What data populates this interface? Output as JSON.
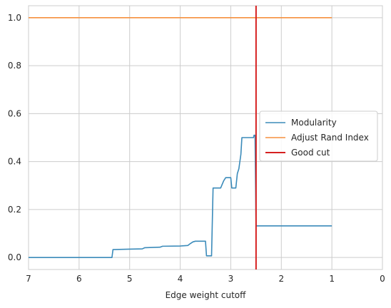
{
  "chart_data": {
    "type": "line",
    "title": "",
    "xlabel": "Edge weight cutoff",
    "ylabel": "",
    "xlim": [
      7,
      0
    ],
    "ylim": [
      -0.05,
      1.05
    ],
    "x_inverted": true,
    "grid": true,
    "xticks": [
      7,
      6,
      5,
      4,
      3,
      2,
      1,
      0
    ],
    "yticks": [
      0.0,
      0.2,
      0.4,
      0.6,
      0.8,
      1.0
    ],
    "xtick_labels": [
      "7",
      "6",
      "5",
      "4",
      "3",
      "2",
      "1",
      "0"
    ],
    "ytick_labels": [
      "0.0",
      "0.2",
      "0.4",
      "0.6",
      "0.8",
      "1.0"
    ],
    "legend_position": "center-right",
    "series": [
      {
        "name": "Modularity",
        "color": "#3b8bba",
        "style": "line",
        "points": [
          [
            7.0,
            0.0
          ],
          [
            5.35,
            0.0
          ],
          [
            5.33,
            0.033
          ],
          [
            5.0,
            0.035
          ],
          [
            4.75,
            0.036
          ],
          [
            4.7,
            0.041
          ],
          [
            4.4,
            0.043
          ],
          [
            4.35,
            0.047
          ],
          [
            4.0,
            0.048
          ],
          [
            3.85,
            0.05
          ],
          [
            3.8,
            0.058
          ],
          [
            3.75,
            0.065
          ],
          [
            3.7,
            0.068
          ],
          [
            3.5,
            0.068
          ],
          [
            3.48,
            0.007
          ],
          [
            3.38,
            0.007
          ],
          [
            3.35,
            0.29
          ],
          [
            3.2,
            0.29
          ],
          [
            3.18,
            0.3
          ],
          [
            3.14,
            0.32
          ],
          [
            3.1,
            0.333
          ],
          [
            3.0,
            0.333
          ],
          [
            2.98,
            0.29
          ],
          [
            2.9,
            0.29
          ],
          [
            2.87,
            0.35
          ],
          [
            2.84,
            0.37
          ],
          [
            2.8,
            0.43
          ],
          [
            2.78,
            0.5
          ],
          [
            2.55,
            0.5
          ],
          [
            2.54,
            0.51
          ],
          [
            2.52,
            0.51
          ],
          [
            2.5,
            0.132
          ],
          [
            1.0,
            0.132
          ]
        ]
      },
      {
        "name": "Adjust Rand Index",
        "color": "#f5913e",
        "style": "line",
        "points": [
          [
            7.0,
            1.0
          ],
          [
            1.0,
            1.0
          ]
        ]
      },
      {
        "name": "Good cut",
        "color": "#d62020",
        "style": "vline",
        "x": 2.5
      }
    ]
  }
}
